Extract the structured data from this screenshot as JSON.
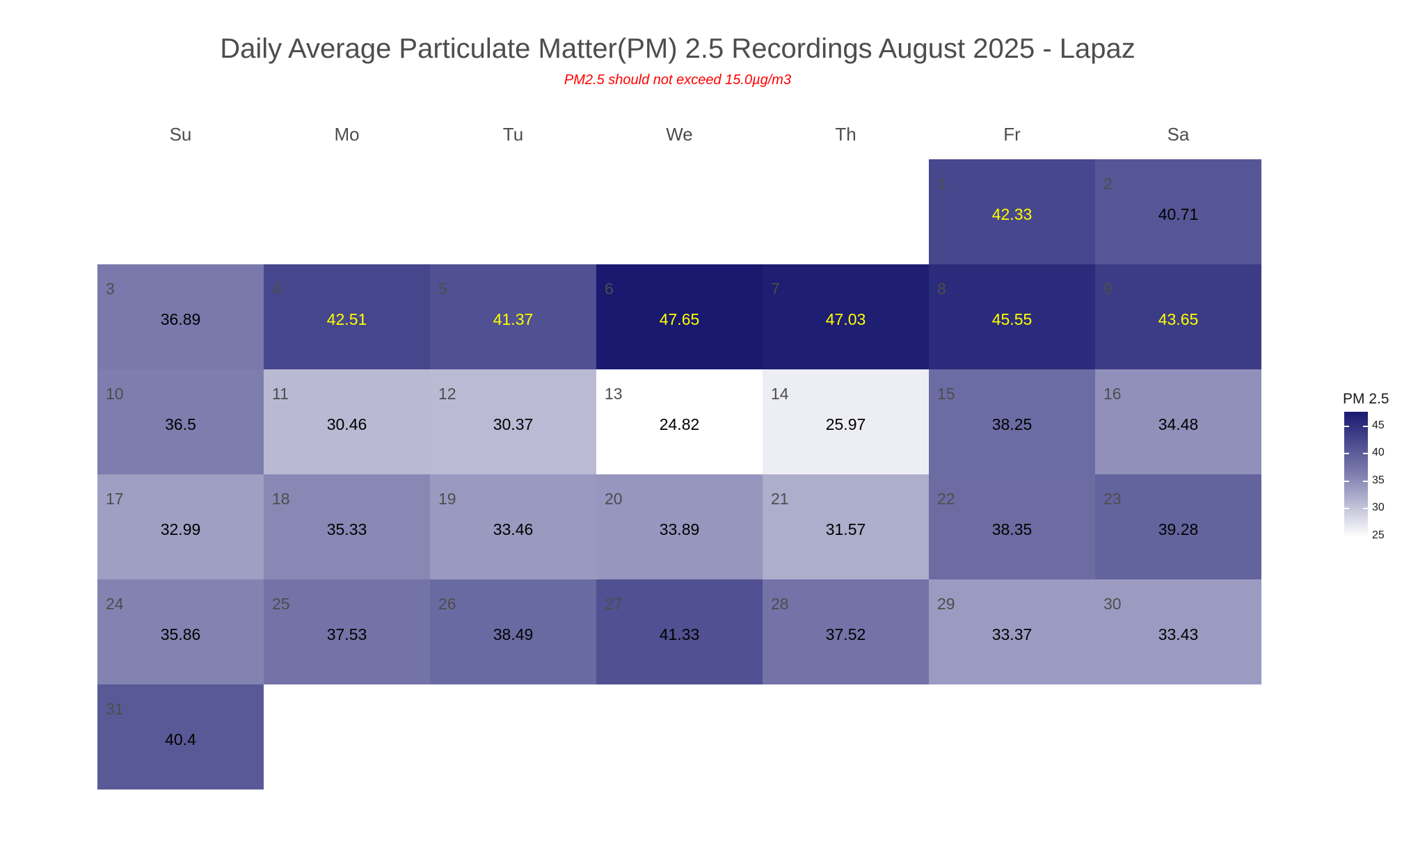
{
  "title": "Daily Average Particulate Matter(PM) 2.5 Recordings August 2025 -  Lapaz",
  "subtitle": "PM2.5 should not exceed 15.0µg/m3",
  "chart_data": {
    "type": "heatmap",
    "month": "August 2025",
    "weekdays": [
      "Su",
      "Mo",
      "Tu",
      "We",
      "Th",
      "Fr",
      "Sa"
    ],
    "first_weekday_index": 5,
    "days": [
      1,
      2,
      3,
      4,
      5,
      6,
      7,
      8,
      9,
      10,
      11,
      12,
      13,
      14,
      15,
      16,
      17,
      18,
      19,
      20,
      21,
      22,
      23,
      24,
      25,
      26,
      27,
      28,
      29,
      30,
      31
    ],
    "values": [
      42.33,
      40.71,
      36.89,
      42.51,
      41.37,
      47.65,
      47.03,
      45.55,
      43.65,
      36.5,
      30.46,
      30.37,
      24.82,
      25.97,
      38.25,
      34.48,
      32.99,
      35.33,
      33.46,
      33.89,
      31.57,
      38.35,
      39.28,
      35.86,
      37.53,
      38.49,
      41.33,
      37.52,
      33.37,
      33.43,
      40.4
    ],
    "value_labels": [
      "42.33",
      "40.71",
      "36.89",
      "42.51",
      "41.37",
      "47.65",
      "47.03",
      "45.55",
      "43.65",
      "36.5",
      "30.46",
      "30.37",
      "24.82",
      "25.97",
      "38.25",
      "34.48",
      "32.99",
      "35.33",
      "33.46",
      "33.89",
      "31.57",
      "38.35",
      "39.28",
      "35.86",
      "37.53",
      "38.49",
      "41.33",
      "37.52",
      "33.37",
      "33.43",
      "40.4"
    ],
    "label_color_threshold": 41.35,
    "label_color_high": "#ffff00",
    "label_color_low": "#000000",
    "color_scale": {
      "low": "#ffffff",
      "high": "#191970",
      "min": 24.82,
      "max": 47.65
    },
    "legend": {
      "title": "PM 2.5",
      "ticks": [
        25,
        30,
        35,
        40,
        45
      ],
      "placement": "right"
    }
  }
}
